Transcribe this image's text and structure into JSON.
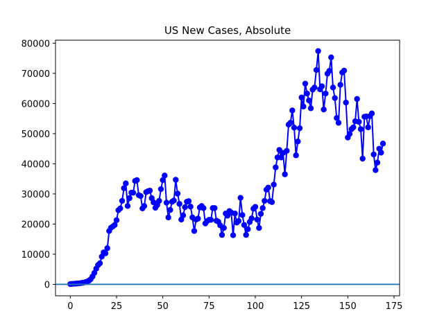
{
  "chart_data": {
    "type": "line",
    "title": "US New Cases, Absolute",
    "xlabel": "",
    "ylabel": "",
    "xlim": [
      -8,
      178
    ],
    "ylim": [
      -3800,
      81000
    ],
    "xticks": [
      0,
      25,
      50,
      75,
      100,
      125,
      150,
      175
    ],
    "yticks": [
      0,
      10000,
      20000,
      30000,
      40000,
      50000,
      60000,
      70000,
      80000
    ],
    "grid": false,
    "legend": "none",
    "series": [
      {
        "color": "#0000ff",
        "marker": "circle",
        "x": [
          0,
          1,
          2,
          3,
          4,
          5,
          6,
          7,
          8,
          9,
          10,
          11,
          12,
          13,
          14,
          15,
          16,
          17,
          18,
          19,
          20,
          21,
          22,
          23,
          24,
          25,
          26,
          27,
          28,
          29,
          30,
          31,
          32,
          33,
          34,
          35,
          36,
          37,
          38,
          39,
          40,
          41,
          42,
          43,
          44,
          45,
          46,
          47,
          48,
          49,
          50,
          51,
          52,
          53,
          54,
          55,
          56,
          57,
          58,
          59,
          60,
          61,
          62,
          63,
          64,
          65,
          66,
          67,
          68,
          69,
          70,
          71,
          72,
          73,
          74,
          75,
          76,
          77,
          78,
          79,
          80,
          81,
          82,
          83,
          84,
          85,
          86,
          87,
          88,
          89,
          90,
          91,
          92,
          93,
          94,
          95,
          96,
          97,
          98,
          99,
          100,
          101,
          102,
          103,
          104,
          105,
          106,
          107,
          108,
          109,
          110,
          111,
          112,
          113,
          114,
          115,
          116,
          117,
          118,
          119,
          120,
          121,
          122,
          123,
          124,
          125,
          126,
          127,
          128,
          129,
          130,
          131,
          132,
          133,
          134,
          135,
          136,
          137,
          138,
          139,
          140,
          141,
          142,
          143,
          144,
          145,
          146,
          147,
          148,
          149,
          150,
          151,
          152,
          153,
          154,
          155,
          156,
          157,
          158,
          159,
          160,
          161,
          162,
          163,
          164,
          165,
          166,
          167,
          168,
          169
        ],
        "y": [
          100,
          150,
          200,
          250,
          300,
          350,
          450,
          550,
          700,
          900,
          1200,
          1700,
          2600,
          3800,
          5200,
          6400,
          7000,
          9200,
          10600,
          10300,
          12000,
          17700,
          18800,
          19200,
          19700,
          21300,
          24600,
          25200,
          27700,
          31900,
          33500,
          26000,
          28600,
          30400,
          30400,
          34300,
          34600,
          29600,
          29300,
          25200,
          26000,
          30600,
          30900,
          31100,
          28600,
          27200,
          25400,
          26300,
          27700,
          31600,
          34600,
          36100,
          27100,
          22200,
          24700,
          27400,
          27800,
          34700,
          30100,
          26700,
          21500,
          22900,
          25600,
          27400,
          27600,
          25800,
          22200,
          17700,
          21500,
          21800,
          25500,
          26000,
          25300,
          20200,
          21000,
          21400,
          21400,
          25300,
          25300,
          21100,
          20800,
          19600,
          16400,
          18700,
          23500,
          22800,
          24300,
          23800,
          16300,
          23500,
          20500,
          21000,
          28700,
          23000,
          19700,
          16400,
          18300,
          20700,
          21900,
          25100,
          25700,
          21500,
          18700,
          23400,
          25300,
          27700,
          31400,
          32100,
          27600,
          27300,
          33100,
          38800,
          42100,
          44600,
          42100,
          43600,
          36500,
          44300,
          53000,
          53600,
          57700,
          52000,
          42800,
          47400,
          51800,
          62000,
          59000,
          66600,
          63300,
          61000,
          58400,
          64600,
          65300,
          71100,
          77400,
          64700,
          65700,
          58000,
          63300,
          69900,
          70800,
          75300,
          65300,
          61800,
          55200,
          53600,
          66200,
          70300,
          70900,
          60300,
          48700,
          49900,
          51500,
          52100,
          54100,
          61500,
          53900,
          51500,
          41700,
          55600,
          55700,
          52100,
          55800,
          56700,
          43100,
          37900,
          40400,
          45000,
          43700,
          46700
        ]
      },
      {
        "color": "#1f77b4",
        "marker": "none",
        "x": [
          -8,
          178
        ],
        "y": [
          0,
          0
        ]
      }
    ]
  }
}
